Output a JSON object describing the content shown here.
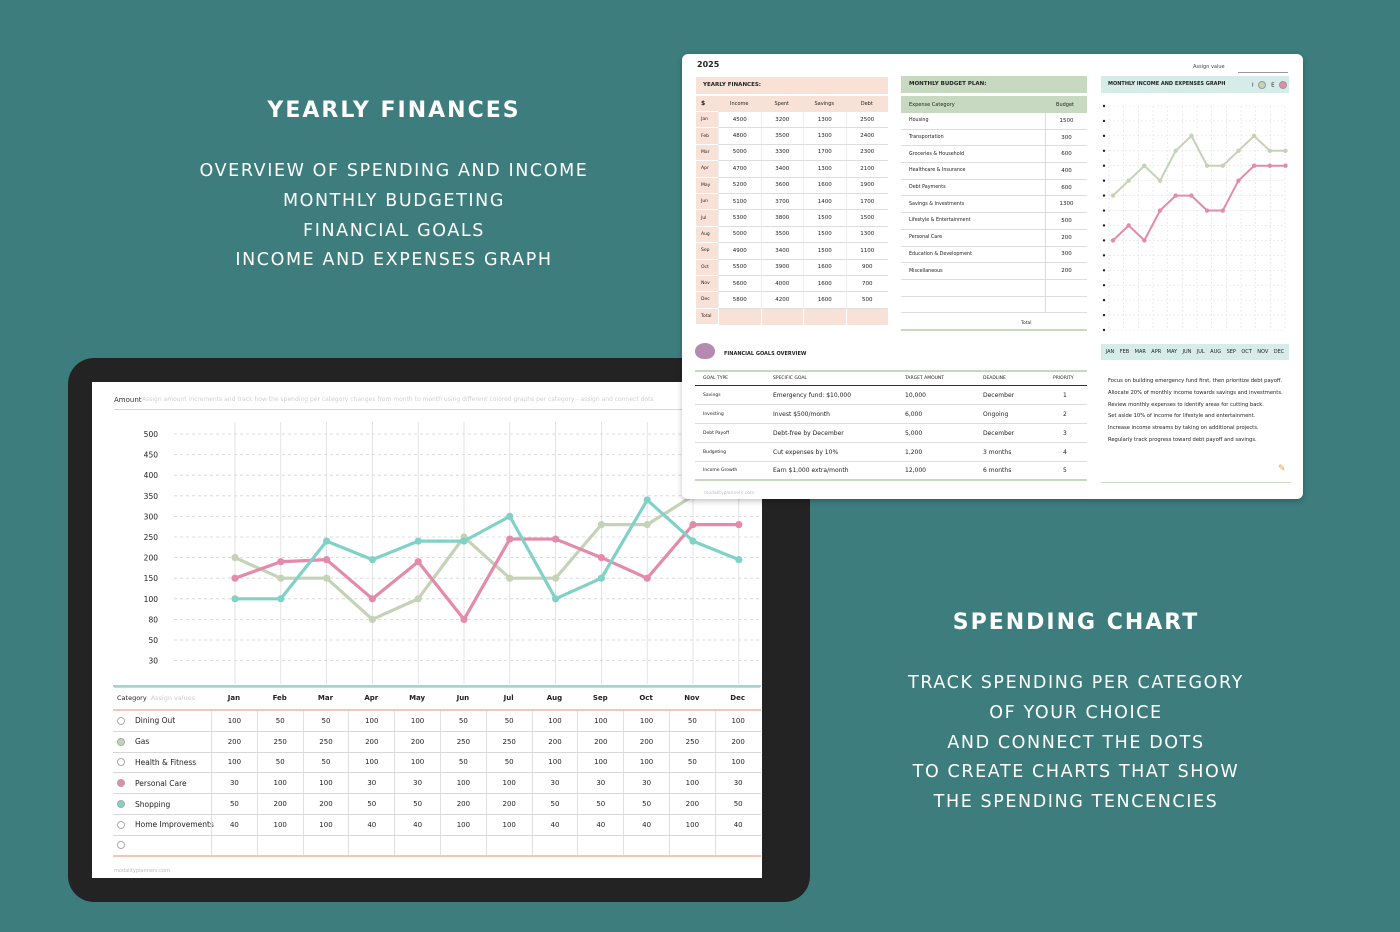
{
  "left_panel": {
    "heading": "YEARLY FINANCES",
    "lines": [
      "OVERVIEW OF SPENDING AND INCOME",
      "MONTHLY BUDGETING",
      "FINANCIAL GOALS",
      "INCOME AND EXPENSES GRAPH"
    ]
  },
  "right_panel": {
    "heading": "SPENDING CHART",
    "lines": [
      "TRACK SPENDING PER CATEGORY",
      "OF YOUR CHOICE",
      "AND CONNECT THE DOTS",
      "TO CREATE CHARTS THAT SHOW",
      "THE SPENDING TENCENCIES"
    ]
  },
  "colors": {
    "background": "#3d7d7d",
    "pink": "#e48aaa",
    "sage": "#c4d3b6",
    "teal": "#80d2c8"
  },
  "spending": {
    "amount_label": "Amount",
    "amount_hint": "Assign amount increments and track how the spending per category changes from month to month using different colored graphs per category - assign and connect dots",
    "category_label": "Category",
    "category_hint": "Assign values",
    "footer": "modalityplanners.com",
    "months": [
      "Jan",
      "Feb",
      "Mar",
      "Apr",
      "May",
      "Jun",
      "Jul",
      "Aug",
      "Sep",
      "Oct",
      "Nov",
      "Dec"
    ],
    "categories": [
      {
        "name": "Dining Out",
        "dot": "#ffffff",
        "values": [
          "100",
          "50",
          "50",
          "100",
          "100",
          "50",
          "50",
          "100",
          "100",
          "100",
          "50",
          "100"
        ]
      },
      {
        "name": "Gas",
        "dot": "#c4d3b6",
        "values": [
          "200",
          "250",
          "250",
          "200",
          "200",
          "250",
          "250",
          "200",
          "200",
          "200",
          "250",
          "200"
        ]
      },
      {
        "name": "Health & Fitness",
        "dot": "#ffffff",
        "values": [
          "100",
          "50",
          "50",
          "100",
          "100",
          "50",
          "50",
          "100",
          "100",
          "100",
          "50",
          "100"
        ]
      },
      {
        "name": "Personal Care",
        "dot": "#e48aaa",
        "values": [
          "30",
          "100",
          "100",
          "30",
          "30",
          "100",
          "100",
          "30",
          "30",
          "30",
          "100",
          "30"
        ]
      },
      {
        "name": "Shopping",
        "dot": "#80d2c8",
        "values": [
          "50",
          "200",
          "200",
          "50",
          "50",
          "200",
          "200",
          "50",
          "50",
          "50",
          "200",
          "50"
        ]
      },
      {
        "name": "Home Improvements",
        "dot": "#ffffff",
        "values": [
          "40",
          "100",
          "100",
          "40",
          "40",
          "100",
          "100",
          "40",
          "40",
          "40",
          "100",
          "40"
        ]
      },
      {
        "name": "",
        "dot": "#ffffff",
        "values": [
          "",
          "",
          "",
          "",
          "",
          "",
          "",
          "",
          "",
          "",
          "",
          ""
        ]
      }
    ]
  },
  "chart_data": [
    {
      "type": "line",
      "y_ticks": [
        "500",
        "450",
        "400",
        "350",
        "300",
        "250",
        "200",
        "150",
        "100",
        "80",
        "50",
        "30"
      ],
      "categories": [
        "Jan",
        "Feb",
        "Mar",
        "Apr",
        "May",
        "Jun",
        "Jul",
        "Aug",
        "Sep",
        "Oct",
        "Nov",
        "Dec"
      ],
      "series": [
        {
          "name": "Gas",
          "color": "#c4d3b6",
          "values": [
            200,
            150,
            150,
            80,
            100,
            250,
            150,
            150,
            280,
            280,
            350,
            350
          ]
        },
        {
          "name": "Personal Care",
          "color": "#e48aaa",
          "values": [
            150,
            190,
            195,
            100,
            190,
            80,
            245,
            245,
            200,
            150,
            280,
            280
          ]
        },
        {
          "name": "Shopping",
          "color": "#80d2c8",
          "values": [
            100,
            100,
            240,
            195,
            240,
            240,
            300,
            100,
            150,
            340,
            240,
            195
          ]
        }
      ]
    },
    {
      "type": "line",
      "title": "MONTHLY INCOME AND EXPENSES GRAPH",
      "categories": [
        "JAN",
        "FEB",
        "MAR",
        "APR",
        "MAY",
        "JUN",
        "JUL",
        "AUG",
        "SEP",
        "OCT",
        "NOV",
        "DEC"
      ],
      "series": [
        {
          "name": "I",
          "color": "#c4d3b6",
          "values": [
            9,
            10,
            11,
            10,
            12,
            13,
            11,
            11,
            12,
            13,
            12,
            12
          ]
        },
        {
          "name": "E",
          "color": "#e48aaa",
          "values": [
            6,
            7,
            6,
            8,
            9,
            9,
            8,
            8,
            10,
            11,
            11,
            11
          ]
        }
      ]
    }
  ],
  "sheet": {
    "year": "2025",
    "assign_label": "Assign value",
    "yearly_title": "YEARLY FINANCES:",
    "yearly_headers": [
      "$",
      "Income",
      "Spent",
      "Savings",
      "Debt"
    ],
    "yearly_rows": [
      [
        "Jan",
        "4500",
        "3200",
        "1300",
        "2500"
      ],
      [
        "Feb",
        "4800",
        "3500",
        "1300",
        "2400"
      ],
      [
        "Mar",
        "5000",
        "3300",
        "1700",
        "2300"
      ],
      [
        "Apr",
        "4700",
        "3400",
        "1300",
        "2100"
      ],
      [
        "May",
        "5200",
        "3600",
        "1600",
        "1900"
      ],
      [
        "Jun",
        "5100",
        "3700",
        "1400",
        "1700"
      ],
      [
        "Jul",
        "5300",
        "3800",
        "1500",
        "1500"
      ],
      [
        "Aug",
        "5000",
        "3500",
        "1500",
        "1300"
      ],
      [
        "Sep",
        "4900",
        "3400",
        "1500",
        "1100"
      ],
      [
        "Oct",
        "5500",
        "3900",
        "1600",
        "900"
      ],
      [
        "Nov",
        "5600",
        "4000",
        "1600",
        "700"
      ],
      [
        "Dec",
        "5800",
        "4200",
        "1600",
        "500"
      ]
    ],
    "yearly_total": "Total",
    "budget_title": "MONTHLY BUDGET PLAN:",
    "budget_headers": [
      "Expense Category",
      "Budget"
    ],
    "budget_rows": [
      [
        "Housing",
        "1500"
      ],
      [
        "Transportation",
        "300"
      ],
      [
        "Groceries & Household",
        "600"
      ],
      [
        "Healthcare & Insurance",
        "400"
      ],
      [
        "Debt Payments",
        "600"
      ],
      [
        "Savings & Investments",
        "1300"
      ],
      [
        "Lifestyle & Entertainment",
        "500"
      ],
      [
        "Personal Care",
        "200"
      ],
      [
        "Education & Development",
        "300"
      ],
      [
        "Miscellaneous",
        "200"
      ],
      [
        "",
        ""
      ],
      [
        "",
        ""
      ]
    ],
    "budget_total": "Total",
    "graph_title": "MONTHLY INCOME AND EXPENSES GRAPH",
    "graph_legend_i": "I",
    "graph_legend_e": "E",
    "graph_months": [
      "JAN",
      "FEB",
      "MAR",
      "APR",
      "MAY",
      "JUN",
      "JUL",
      "AUG",
      "SEP",
      "OCT",
      "NOV",
      "DEC"
    ],
    "notes": [
      "Focus on building emergency fund first, then prioritize debt payoff.",
      "Allocate 20% of monthly income towards savings and investments.",
      "Review monthly expenses to identify areas for cutting back.",
      "Set aside 10% of income for lifestyle and entertainment.",
      "Increase income streams by taking on additional projects.",
      "Regularly track progress toward debt payoff and savings."
    ],
    "goals_title": "FINANCIAL GOALS OVERVIEW",
    "goals_headers": [
      "GOAL TYPE",
      "SPECIFIC GOAL",
      "TARGET AMOUNT",
      "DEADLINE",
      "PRIORITY"
    ],
    "goals_rows": [
      [
        "Savings",
        "Emergency fund: $10,000",
        "10,000",
        "December",
        "1"
      ],
      [
        "Investing",
        "Invest $500/month",
        "6,000",
        "Ongoing",
        "2"
      ],
      [
        "Debt Payoff",
        "Debt-free by December",
        "5,000",
        "December",
        "3"
      ],
      [
        "Budgeting",
        "Cut expenses by 10%",
        "1,200",
        "3 months",
        "4"
      ],
      [
        "Income Growth",
        "Earn $1,000 extra/month",
        "12,000",
        "6 months",
        "5"
      ]
    ],
    "footer": "modalityplanners.com"
  }
}
